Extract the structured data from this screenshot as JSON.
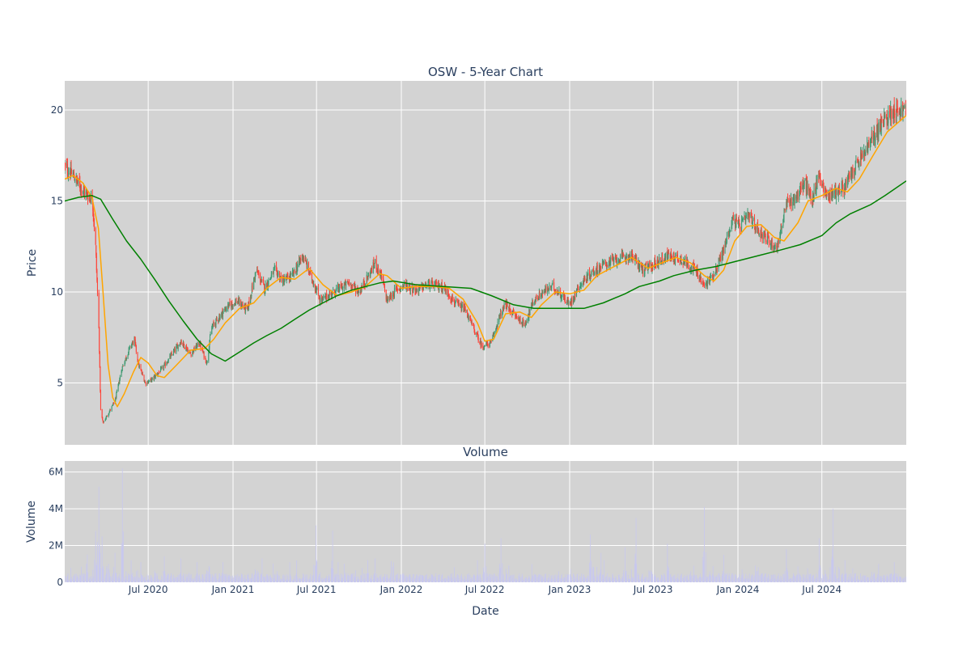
{
  "chart_data": [
    {
      "type": "candlestick",
      "title": "OSW - 5-Year Chart",
      "ylabel": "Price",
      "ylim": [
        1.6,
        21.6
      ],
      "yticks": [
        5,
        10,
        15,
        20
      ],
      "xlim": [
        "2020-01-02",
        "2024-12-31"
      ],
      "xticks": [
        {
          "date": "2020-07-01",
          "label": "Jul 2020"
        },
        {
          "date": "2021-01-01",
          "label": "Jan 2021"
        },
        {
          "date": "2021-07-01",
          "label": "Jul 2021"
        },
        {
          "date": "2022-01-01",
          "label": "Jan 2022"
        },
        {
          "date": "2022-07-01",
          "label": "Jul 2022"
        },
        {
          "date": "2023-01-01",
          "label": "Jan 2023"
        },
        {
          "date": "2023-07-01",
          "label": "Jul 2023"
        },
        {
          "date": "2024-01-01",
          "label": "Jan 2024"
        },
        {
          "date": "2024-07-01",
          "label": "Jul 2024"
        }
      ],
      "grid": true,
      "plot_background": "#d3d3d3",
      "up_color": "#3d9970",
      "down_color": "#ff4136",
      "close_anchors": [
        [
          "2020-01-02",
          16.9
        ],
        [
          "2020-01-20",
          16.4
        ],
        [
          "2020-02-05",
          15.8
        ],
        [
          "2020-02-20",
          15.3
        ],
        [
          "2020-03-02",
          15.1
        ],
        [
          "2020-03-09",
          12.5
        ],
        [
          "2020-03-16",
          8.0
        ],
        [
          "2020-03-20",
          3.5
        ],
        [
          "2020-03-25",
          2.8
        ],
        [
          "2020-04-05",
          3.3
        ],
        [
          "2020-04-20",
          4.0
        ],
        [
          "2020-05-05",
          5.8
        ],
        [
          "2020-05-20",
          6.8
        ],
        [
          "2020-06-01",
          7.4
        ],
        [
          "2020-06-10",
          6.0
        ],
        [
          "2020-06-25",
          5.0
        ],
        [
          "2020-07-10",
          5.2
        ],
        [
          "2020-08-01",
          5.8
        ],
        [
          "2020-08-20",
          6.5
        ],
        [
          "2020-09-10",
          7.3
        ],
        [
          "2020-10-01",
          6.6
        ],
        [
          "2020-10-20",
          7.2
        ],
        [
          "2020-11-05",
          6.1
        ],
        [
          "2020-11-15",
          8.0
        ],
        [
          "2020-12-01",
          8.6
        ],
        [
          "2020-12-20",
          9.2
        ],
        [
          "2021-01-10",
          9.5
        ],
        [
          "2021-02-01",
          9.0
        ],
        [
          "2021-02-20",
          11.2
        ],
        [
          "2021-03-10",
          10.2
        ],
        [
          "2021-04-01",
          11.2
        ],
        [
          "2021-04-20",
          10.6
        ],
        [
          "2021-05-10",
          10.9
        ],
        [
          "2021-06-01",
          12.0
        ],
        [
          "2021-06-20",
          10.8
        ],
        [
          "2021-07-10",
          9.5
        ],
        [
          "2021-08-01",
          9.9
        ],
        [
          "2021-08-20",
          10.2
        ],
        [
          "2021-09-10",
          10.5
        ],
        [
          "2021-10-01",
          10.0
        ],
        [
          "2021-10-20",
          10.8
        ],
        [
          "2021-11-05",
          11.6
        ],
        [
          "2021-11-20",
          10.8
        ],
        [
          "2021-12-01",
          9.5
        ],
        [
          "2021-12-20",
          10.1
        ],
        [
          "2022-01-10",
          10.4
        ],
        [
          "2022-02-01",
          10.1
        ],
        [
          "2022-03-01",
          10.4
        ],
        [
          "2022-04-01",
          10.3
        ],
        [
          "2022-05-01",
          9.3
        ],
        [
          "2022-05-20",
          9.0
        ],
        [
          "2022-06-10",
          7.8
        ],
        [
          "2022-06-25",
          7.0
        ],
        [
          "2022-07-15",
          7.2
        ],
        [
          "2022-08-01",
          8.6
        ],
        [
          "2022-08-15",
          9.3
        ],
        [
          "2022-09-01",
          8.8
        ],
        [
          "2022-09-25",
          8.2
        ],
        [
          "2022-10-15",
          9.5
        ],
        [
          "2022-11-05",
          10.0
        ],
        [
          "2022-11-25",
          10.3
        ],
        [
          "2022-12-15",
          9.8
        ],
        [
          "2023-01-01",
          9.3
        ],
        [
          "2023-01-20",
          10.3
        ],
        [
          "2023-02-15",
          11.0
        ],
        [
          "2023-03-15",
          11.5
        ],
        [
          "2023-04-15",
          11.8
        ],
        [
          "2023-05-15",
          12.0
        ],
        [
          "2023-06-10",
          11.2
        ],
        [
          "2023-07-01",
          11.5
        ],
        [
          "2023-08-01",
          12.0
        ],
        [
          "2023-09-01",
          11.8
        ],
        [
          "2023-10-01",
          11.2
        ],
        [
          "2023-10-20",
          10.3
        ],
        [
          "2023-11-10",
          11.0
        ],
        [
          "2023-12-01",
          12.3
        ],
        [
          "2023-12-20",
          14.0
        ],
        [
          "2024-01-05",
          13.6
        ],
        [
          "2024-01-25",
          14.2
        ],
        [
          "2024-02-10",
          13.5
        ],
        [
          "2024-03-01",
          13.0
        ],
        [
          "2024-03-25",
          12.4
        ],
        [
          "2024-04-15",
          14.8
        ],
        [
          "2024-05-05",
          15.2
        ],
        [
          "2024-05-25",
          16.0
        ],
        [
          "2024-06-10",
          15.0
        ],
        [
          "2024-06-25",
          16.5
        ],
        [
          "2024-07-10",
          15.3
        ],
        [
          "2024-08-01",
          15.5
        ],
        [
          "2024-08-20",
          15.8
        ],
        [
          "2024-09-10",
          16.8
        ],
        [
          "2024-10-05",
          17.8
        ],
        [
          "2024-11-01",
          19.0
        ],
        [
          "2024-12-01",
          20.0
        ],
        [
          "2024-12-31",
          20.0
        ]
      ],
      "overlays": [
        {
          "color": "#ffa500",
          "points": [
            [
              "2020-01-02",
              16.2
            ],
            [
              "2020-01-20",
              16.4
            ],
            [
              "2020-02-10",
              16.0
            ],
            [
              "2020-03-01",
              15.2
            ],
            [
              "2020-03-15",
              13.5
            ],
            [
              "2020-03-25",
              10.0
            ],
            [
              "2020-04-05",
              6.0
            ],
            [
              "2020-04-15",
              4.2
            ],
            [
              "2020-04-25",
              3.7
            ],
            [
              "2020-05-10",
              4.4
            ],
            [
              "2020-05-30",
              5.6
            ],
            [
              "2020-06-15",
              6.4
            ],
            [
              "2020-07-01",
              6.1
            ],
            [
              "2020-07-20",
              5.4
            ],
            [
              "2020-08-05",
              5.3
            ],
            [
              "2020-09-01",
              6.0
            ],
            [
              "2020-10-01",
              6.8
            ],
            [
              "2020-11-01",
              6.9
            ],
            [
              "2020-11-20",
              7.4
            ],
            [
              "2020-12-15",
              8.3
            ],
            [
              "2021-01-15",
              9.1
            ],
            [
              "2021-02-15",
              9.4
            ],
            [
              "2021-03-15",
              10.2
            ],
            [
              "2021-04-15",
              10.8
            ],
            [
              "2021-05-15",
              10.7
            ],
            [
              "2021-06-15",
              11.3
            ],
            [
              "2021-07-15",
              10.4
            ],
            [
              "2021-08-15",
              9.8
            ],
            [
              "2021-09-15",
              10.0
            ],
            [
              "2021-10-15",
              10.3
            ],
            [
              "2021-11-15",
              11.0
            ],
            [
              "2021-12-01",
              10.9
            ],
            [
              "2022-01-01",
              10.2
            ],
            [
              "2022-02-01",
              10.3
            ],
            [
              "2022-03-15",
              10.3
            ],
            [
              "2022-04-15",
              10.2
            ],
            [
              "2022-05-15",
              9.6
            ],
            [
              "2022-06-15",
              8.3
            ],
            [
              "2022-07-01",
              7.3
            ],
            [
              "2022-07-20",
              7.4
            ],
            [
              "2022-08-15",
              8.8
            ],
            [
              "2022-09-15",
              8.9
            ],
            [
              "2022-10-10",
              8.6
            ],
            [
              "2022-11-01",
              9.3
            ],
            [
              "2022-12-01",
              10.0
            ],
            [
              "2023-01-01",
              9.9
            ],
            [
              "2023-02-01",
              10.1
            ],
            [
              "2023-03-01",
              10.9
            ],
            [
              "2023-04-15",
              11.5
            ],
            [
              "2023-05-15",
              11.9
            ],
            [
              "2023-06-20",
              11.3
            ],
            [
              "2023-07-20",
              11.6
            ],
            [
              "2023-08-20",
              11.9
            ],
            [
              "2023-09-20",
              11.6
            ],
            [
              "2023-10-20",
              10.9
            ],
            [
              "2023-11-10",
              10.6
            ],
            [
              "2023-12-01",
              11.2
            ],
            [
              "2023-12-25",
              12.8
            ],
            [
              "2024-01-20",
              13.6
            ],
            [
              "2024-02-20",
              13.7
            ],
            [
              "2024-03-20",
              13.0
            ],
            [
              "2024-04-10",
              12.8
            ],
            [
              "2024-05-10",
              13.8
            ],
            [
              "2024-06-01",
              15.0
            ],
            [
              "2024-07-01",
              15.3
            ],
            [
              "2024-08-01",
              15.7
            ],
            [
              "2024-08-25",
              15.5
            ],
            [
              "2024-09-20",
              16.2
            ],
            [
              "2024-10-20",
              17.5
            ],
            [
              "2024-11-20",
              18.8
            ],
            [
              "2024-12-31",
              19.7
            ]
          ]
        },
        {
          "color": "#008000",
          "points": [
            [
              "2020-01-02",
              15.0
            ],
            [
              "2020-02-01",
              15.2
            ],
            [
              "2020-03-01",
              15.3
            ],
            [
              "2020-03-20",
              15.1
            ],
            [
              "2020-04-15",
              14.0
            ],
            [
              "2020-05-15",
              12.8
            ],
            [
              "2020-06-15",
              11.8
            ],
            [
              "2020-07-15",
              10.7
            ],
            [
              "2020-08-15",
              9.5
            ],
            [
              "2020-09-15",
              8.4
            ],
            [
              "2020-10-15",
              7.4
            ],
            [
              "2020-11-15",
              6.6
            ],
            [
              "2020-12-15",
              6.2
            ],
            [
              "2021-01-15",
              6.7
            ],
            [
              "2021-02-15",
              7.2
            ],
            [
              "2021-03-15",
              7.6
            ],
            [
              "2021-04-15",
              8.0
            ],
            [
              "2021-05-15",
              8.5
            ],
            [
              "2021-06-15",
              9.0
            ],
            [
              "2021-07-15",
              9.4
            ],
            [
              "2021-08-15",
              9.8
            ],
            [
              "2021-09-15",
              10.1
            ],
            [
              "2021-10-15",
              10.3
            ],
            [
              "2021-11-15",
              10.5
            ],
            [
              "2021-12-15",
              10.6
            ],
            [
              "2022-02-01",
              10.4
            ],
            [
              "2022-04-01",
              10.3
            ],
            [
              "2022-06-01",
              10.2
            ],
            [
              "2022-07-15",
              9.8
            ],
            [
              "2022-09-01",
              9.3
            ],
            [
              "2022-10-15",
              9.1
            ],
            [
              "2022-12-01",
              9.1
            ],
            [
              "2023-02-01",
              9.1
            ],
            [
              "2023-03-15",
              9.4
            ],
            [
              "2023-05-01",
              9.9
            ],
            [
              "2023-06-01",
              10.3
            ],
            [
              "2023-07-15",
              10.6
            ],
            [
              "2023-08-15",
              10.9
            ],
            [
              "2023-10-01",
              11.2
            ],
            [
              "2023-11-15",
              11.4
            ],
            [
              "2023-12-15",
              11.6
            ],
            [
              "2024-02-15",
              12.0
            ],
            [
              "2024-04-01",
              12.3
            ],
            [
              "2024-05-15",
              12.6
            ],
            [
              "2024-07-01",
              13.1
            ],
            [
              "2024-08-01",
              13.8
            ],
            [
              "2024-09-01",
              14.3
            ],
            [
              "2024-10-15",
              14.8
            ],
            [
              "2024-11-15",
              15.3
            ],
            [
              "2024-12-31",
              16.1
            ]
          ]
        }
      ]
    },
    {
      "type": "bar",
      "title": "Volume",
      "xlabel": "Date",
      "ylabel": "Volume",
      "ylim": [
        0,
        6600000
      ],
      "yticks": [
        {
          "value": 0,
          "label": "0"
        },
        {
          "value": 2000000,
          "label": "2M"
        },
        {
          "value": 4000000,
          "label": "4M"
        },
        {
          "value": 6000000,
          "label": "6M"
        }
      ],
      "bar_color": "#c8c8ee",
      "baseline": 300000,
      "spikes": [
        [
          "2020-02-20",
          1500000
        ],
        [
          "2020-03-09",
          2800000
        ],
        [
          "2020-03-16",
          5200000
        ],
        [
          "2020-03-23",
          2500000
        ],
        [
          "2020-04-05",
          2000000
        ],
        [
          "2020-04-20",
          1600000
        ],
        [
          "2020-05-06",
          6200000
        ],
        [
          "2020-05-25",
          1200000
        ],
        [
          "2020-06-15",
          1100000
        ],
        [
          "2020-08-05",
          1400000
        ],
        [
          "2020-09-10",
          1300000
        ],
        [
          "2020-10-15",
          1100000
        ],
        [
          "2020-11-08",
          2000000
        ],
        [
          "2020-12-10",
          1100000
        ],
        [
          "2021-02-20",
          1600000
        ],
        [
          "2021-03-05",
          1300000
        ],
        [
          "2021-06-30",
          3100000
        ],
        [
          "2021-08-05",
          2800000
        ],
        [
          "2021-10-20",
          1200000
        ],
        [
          "2021-11-05",
          1300000
        ],
        [
          "2022-06-15",
          1200000
        ],
        [
          "2022-07-01",
          2100000
        ],
        [
          "2022-08-05",
          2400000
        ],
        [
          "2022-10-15",
          1100000
        ],
        [
          "2023-02-15",
          2600000
        ],
        [
          "2023-03-10",
          1600000
        ],
        [
          "2023-05-01",
          1900000
        ],
        [
          "2023-05-25",
          3500000
        ],
        [
          "2023-06-25",
          1500000
        ],
        [
          "2023-08-01",
          2100000
        ],
        [
          "2023-10-20",
          4100000
        ],
        [
          "2023-12-01",
          1500000
        ],
        [
          "2024-02-10",
          1500000
        ],
        [
          "2024-04-15",
          1800000
        ],
        [
          "2024-06-25",
          2400000
        ],
        [
          "2024-07-25",
          4000000
        ],
        [
          "2024-08-20",
          1200000
        ],
        [
          "2024-10-20",
          1400000
        ],
        [
          "2024-12-05",
          1100000
        ]
      ]
    }
  ]
}
